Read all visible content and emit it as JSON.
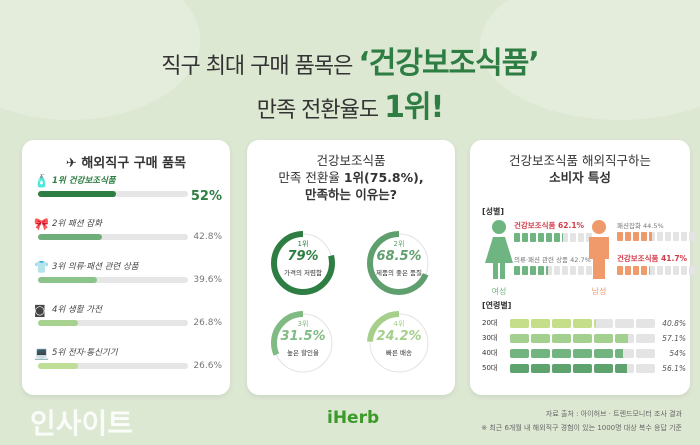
{
  "headline": {
    "line1_prefix": "직구 최대 구매 품목은",
    "line1_highlight": "‘건강보조식품’",
    "line2_prefix": "만족 전환율도",
    "line2_highlight": "1위!"
  },
  "colors": {
    "background": "#dde8d3",
    "accent_green": "#2e7d43",
    "female": "#6fb582",
    "male": "#f09a6b",
    "highlight_red": "#d33b4a"
  },
  "chart_data": [
    {
      "type": "bar",
      "title": "해외직구 구매 품목",
      "categories": [
        "1위 건강보조식품",
        "2위 패션 잡화",
        "3위 의류·패션 관련 상품",
        "4위 생활 가전",
        "5위 전자·통신기기"
      ],
      "values": [
        52,
        42.8,
        39.6,
        26.8,
        26.6
      ],
      "labels": [
        "52%",
        "42.8%",
        "39.6%",
        "26.8%",
        "26.6%"
      ],
      "icons": [
        "supplement-bottle-icon",
        "bow-icon",
        "shirt-icon",
        "washing-machine-icon",
        "laptop-icon"
      ],
      "bar_colors": [
        "#2e7d43",
        "#6fae7a",
        "#8cc38d",
        "#a6d18e",
        "#bedd97"
      ],
      "ylim": [
        0,
        100
      ]
    },
    {
      "type": "pie",
      "title_line1": "건강보조식품",
      "title_line2_prefix": "만족 전환율",
      "title_line2_bold": "1위(75.8%),",
      "title_line3": "만족하는 이유는?",
      "items": [
        {
          "rank": "1위",
          "value": 79,
          "label": "79%",
          "desc": "가격의 저렴함",
          "color": "#2e7d43"
        },
        {
          "rank": "2위",
          "value": 68.5,
          "label": "68.5%",
          "desc": "제품의 좋은 품질",
          "color": "#5f9f6e"
        },
        {
          "rank": "3위",
          "value": 31.5,
          "label": "31.5%",
          "desc": "높은 할인율",
          "color": "#80bb84"
        },
        {
          "rank": "4위",
          "value": 24.2,
          "label": "24.2%",
          "desc": "빠른 배송",
          "color": "#a5cf8a"
        }
      ]
    },
    {
      "type": "bar",
      "title_line1": "건강보조식품 해외직구하는",
      "title_line2": "소비자 특성",
      "gender": {
        "section": "[성별]",
        "female": {
          "label": "여성",
          "items": [
            {
              "name": "건강보조식품",
              "value": 62.1,
              "label": "62.1%",
              "highlight": true
            },
            {
              "name": "의류·패션 관련 상품",
              "value": 42.7,
              "label": "42.7%",
              "highlight": false
            }
          ]
        },
        "male": {
          "label": "남성",
          "items": [
            {
              "name": "패션잡화",
              "value": 44.5,
              "label": "44.5%",
              "highlight": false
            },
            {
              "name": "건강보조식품",
              "value": 41.7,
              "label": "41.7%",
              "highlight": true
            }
          ]
        }
      },
      "age": {
        "section": "[연령별]",
        "categories": [
          "20대",
          "30대",
          "40대",
          "50대"
        ],
        "values": [
          40.8,
          57.1,
          54,
          56.1
        ],
        "labels": [
          "40.8%",
          "57.1%",
          "54%",
          "56.1%"
        ],
        "colors": [
          "#c5de8a",
          "#a3d08e",
          "#72b47f",
          "#5ea26e"
        ]
      }
    }
  ],
  "footer": {
    "source": "자료 출처 : 아이허브 · 트렌드모니터 조사 결과",
    "note": "※ 최근 6개월 내 해외직구 경험이 있는 1000명 대상 복수 응답 기준",
    "logo": "iHerb",
    "watermark": "인사이트"
  }
}
